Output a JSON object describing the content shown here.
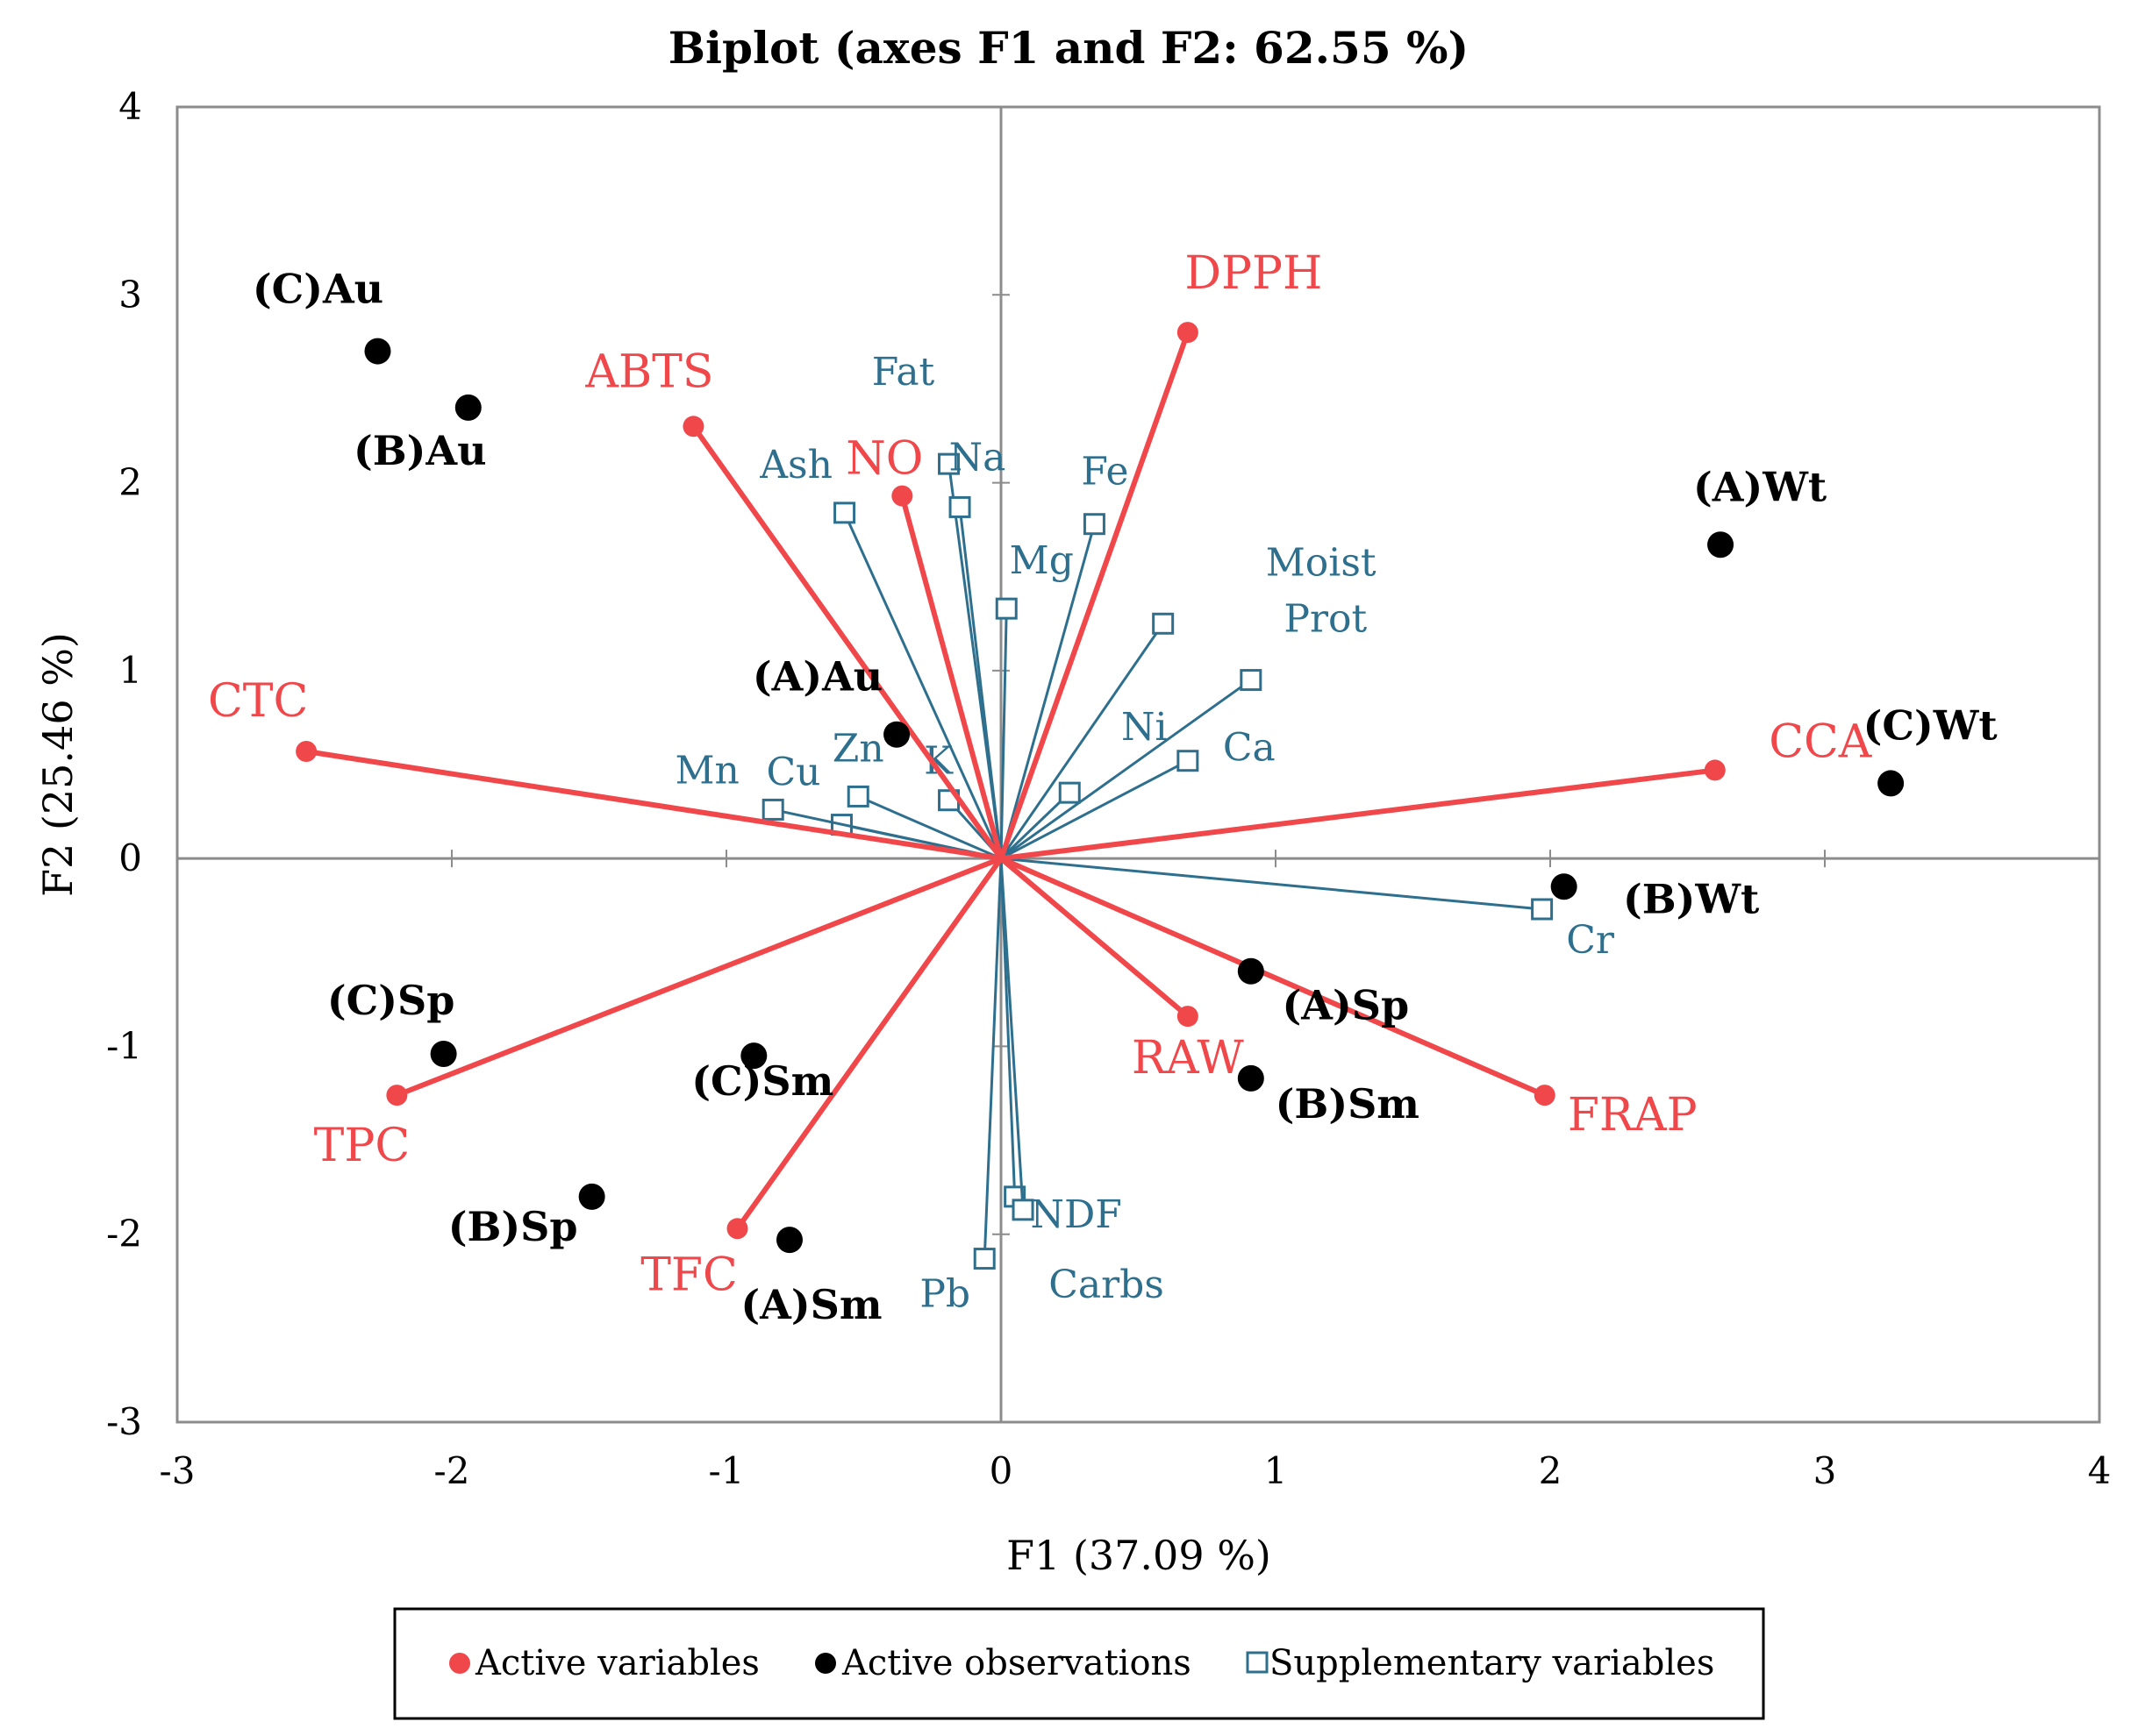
{
  "chart_data": {
    "type": "scatter",
    "title": "Biplot (axes F1 and F2: 62.55 %)",
    "xlabel": "F1 (37.09 %)",
    "ylabel": "F2 (25.46 %)",
    "xlim": [
      -3,
      4
    ],
    "ylim": [
      -3,
      4
    ],
    "xticks": [
      "-3",
      "-2",
      "-1",
      "0",
      "1",
      "2",
      "3",
      "4"
    ],
    "yticks": [
      "-3",
      "-2",
      "-1",
      "0",
      "1",
      "2",
      "3",
      "4"
    ],
    "colors": {
      "active": "#f0474b",
      "supplementary": "#2e6f8e",
      "observation": "#000000"
    },
    "legend": {
      "position": "bottom",
      "active_label": "Active variables",
      "observations_label": "Active observations",
      "supplementary_label": "Supplementary variables"
    },
    "active_variables": [
      {
        "name": "DPPH",
        "x": 0.68,
        "y": 2.8
      },
      {
        "name": "ABTS",
        "x": -1.12,
        "y": 2.3
      },
      {
        "name": "NO",
        "x": -0.36,
        "y": 1.93
      },
      {
        "name": "CTC",
        "x": -2.53,
        "y": 0.57
      },
      {
        "name": "CCA",
        "x": 2.6,
        "y": 0.47
      },
      {
        "name": "RAW",
        "x": 0.68,
        "y": -0.84
      },
      {
        "name": "FRAP",
        "x": 1.98,
        "y": -1.26
      },
      {
        "name": "TPC",
        "x": -2.2,
        "y": -1.26
      },
      {
        "name": "TFC",
        "x": -0.96,
        "y": -1.97
      }
    ],
    "supplementary_variables": [
      {
        "name": "Fat",
        "x": -0.19,
        "y": 2.1
      },
      {
        "name": "Na",
        "x": -0.15,
        "y": 1.87
      },
      {
        "name": "Ash",
        "x": -0.57,
        "y": 1.84
      },
      {
        "name": "Fe",
        "x": 0.34,
        "y": 1.78
      },
      {
        "name": "Mg",
        "x": 0.02,
        "y": 1.33
      },
      {
        "name": "Moist",
        "x": 0.59,
        "y": 1.25
      },
      {
        "name": "Prot",
        "x": 0.91,
        "y": 0.95
      },
      {
        "name": "Ca",
        "x": 0.68,
        "y": 0.52
      },
      {
        "name": "Ni",
        "x": 0.25,
        "y": 0.35
      },
      {
        "name": "K",
        "x": -0.19,
        "y": 0.31
      },
      {
        "name": "Zn",
        "x": -0.52,
        "y": 0.33
      },
      {
        "name": "Cu",
        "x": -0.58,
        "y": 0.18
      },
      {
        "name": "Mn",
        "x": -0.83,
        "y": 0.26
      },
      {
        "name": "Cr",
        "x": 1.97,
        "y": -0.27
      },
      {
        "name": "NDF",
        "x": 0.05,
        "y": -1.8
      },
      {
        "name": "Carbs",
        "x": 0.08,
        "y": -1.87
      },
      {
        "name": "Pb",
        "x": -0.06,
        "y": -2.13
      }
    ],
    "observations": [
      {
        "name": "(C)Au",
        "x": -2.27,
        "y": 2.7
      },
      {
        "name": "(B)Au",
        "x": -1.94,
        "y": 2.4
      },
      {
        "name": "(A)Au",
        "x": -0.38,
        "y": 0.66
      },
      {
        "name": "(A)Wt",
        "x": 2.62,
        "y": 1.67
      },
      {
        "name": "(C)Wt",
        "x": 3.24,
        "y": 0.4
      },
      {
        "name": "(B)Wt",
        "x": 2.05,
        "y": -0.15
      },
      {
        "name": "(A)Sp",
        "x": 0.91,
        "y": -0.6
      },
      {
        "name": "(B)Sm",
        "x": 0.91,
        "y": -1.17
      },
      {
        "name": "(C)Sp",
        "x": -2.03,
        "y": -1.04
      },
      {
        "name": "(C)Sm",
        "x": -0.9,
        "y": -1.05
      },
      {
        "name": "(B)Sp",
        "x": -1.49,
        "y": -1.8
      },
      {
        "name": "(A)Sm",
        "x": -0.77,
        "y": -2.03
      }
    ]
  }
}
